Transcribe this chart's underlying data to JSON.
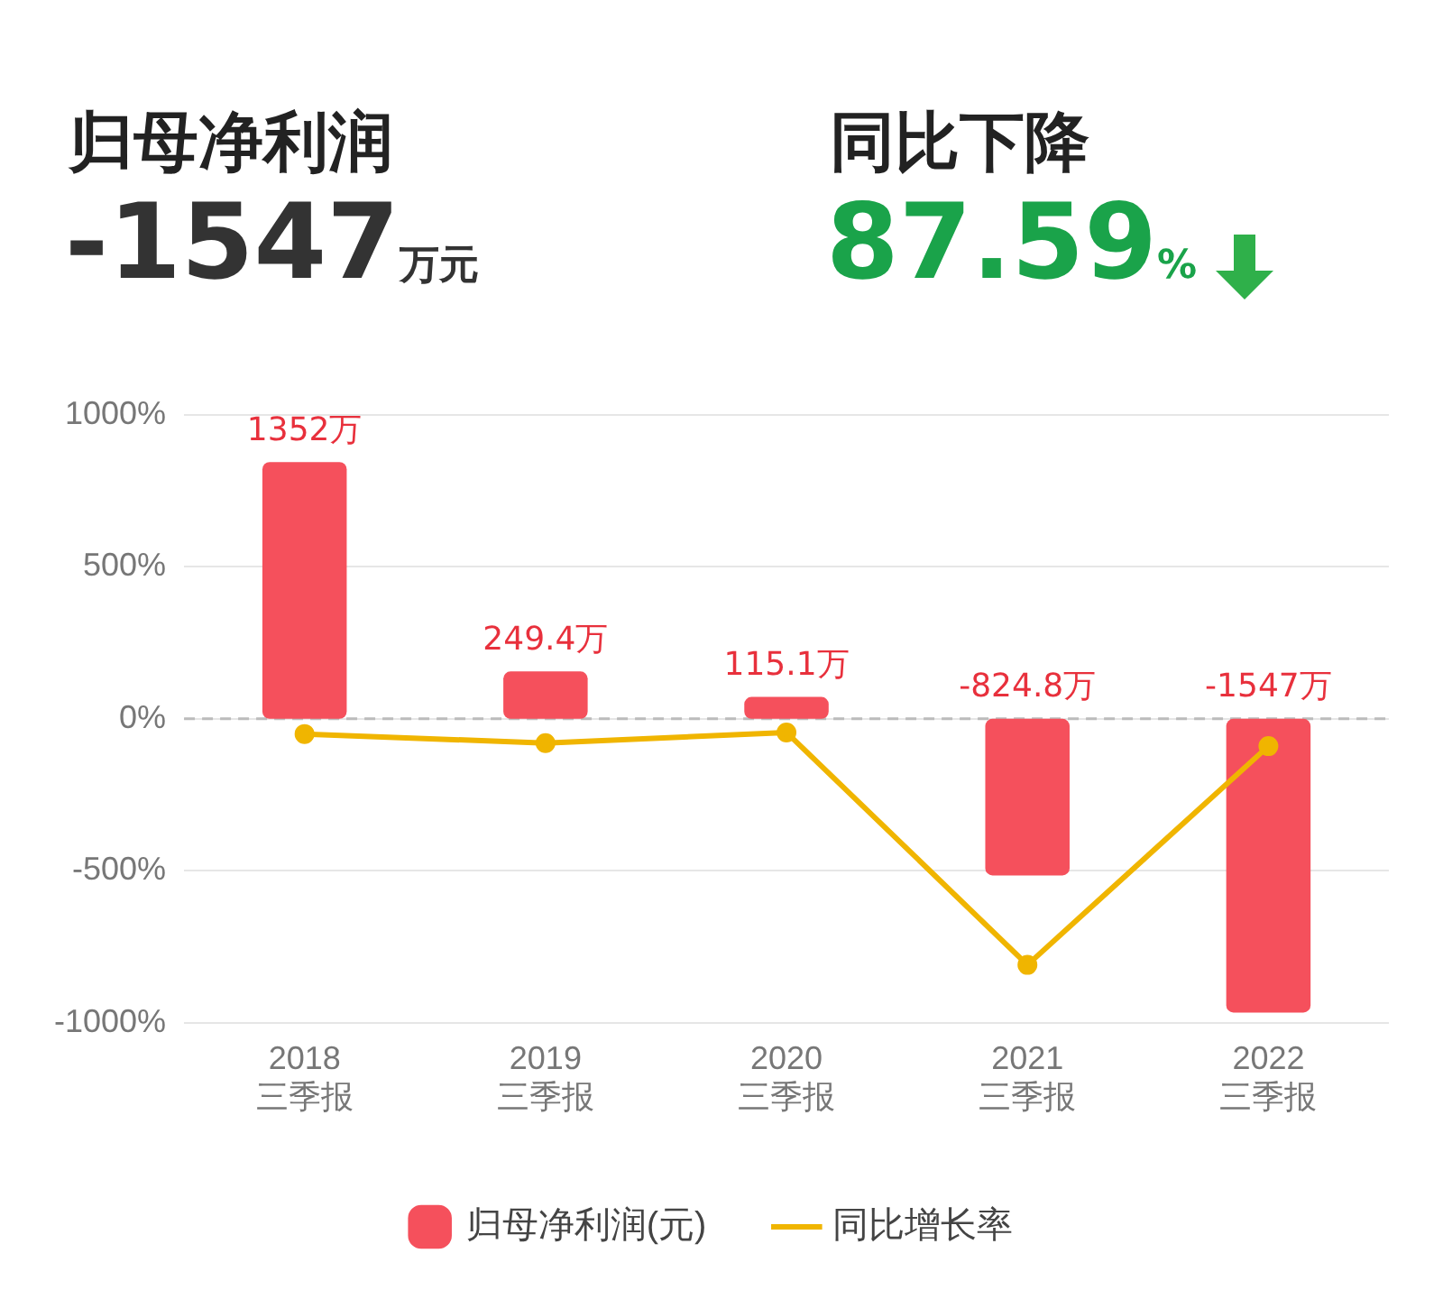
{
  "chart_data": {
    "type": "bar",
    "annotations": [
      "归母净利润",
      "-1547万元",
      "同比下降",
      "87.59%"
    ],
    "categories": [
      "2018 三季报",
      "2019 三季报",
      "2020 三季报",
      "2021 三季报",
      "2022 三季报"
    ],
    "series": [
      {
        "name": "归母净利润(元)",
        "axis": "y2",
        "color": "#f5505c",
        "values": [
          1352,
          249.4,
          115.1,
          -824.8,
          -1547
        ],
        "value_labels": [
          "1352万",
          "249.4万",
          "115.1万",
          "-824.8万",
          "-1547万"
        ]
      },
      {
        "name": "同比增长率",
        "type": "line",
        "color": "#f0b500",
        "values": [
          -50,
          -80,
          -45,
          -810,
          -90
        ]
      }
    ],
    "ylim": [
      -1000,
      1000
    ],
    "yticks": [
      {
        "value": -1000,
        "label": "-1000%"
      },
      {
        "value": -500,
        "label": "-500%"
      },
      {
        "value": 0,
        "label": "0%"
      },
      {
        "value": 500,
        "label": "500%"
      },
      {
        "value": 1000,
        "label": "1000%"
      }
    ],
    "y2lim": [
      -1600,
      1600
    ],
    "ref_lines": [
      {
        "axis": "y",
        "value": 0,
        "color": "#bbbbbb",
        "line_style": "dashed"
      }
    ],
    "grid": "y",
    "legend": "bottom",
    "marker": "circle",
    "line_style": "solid"
  }
}
